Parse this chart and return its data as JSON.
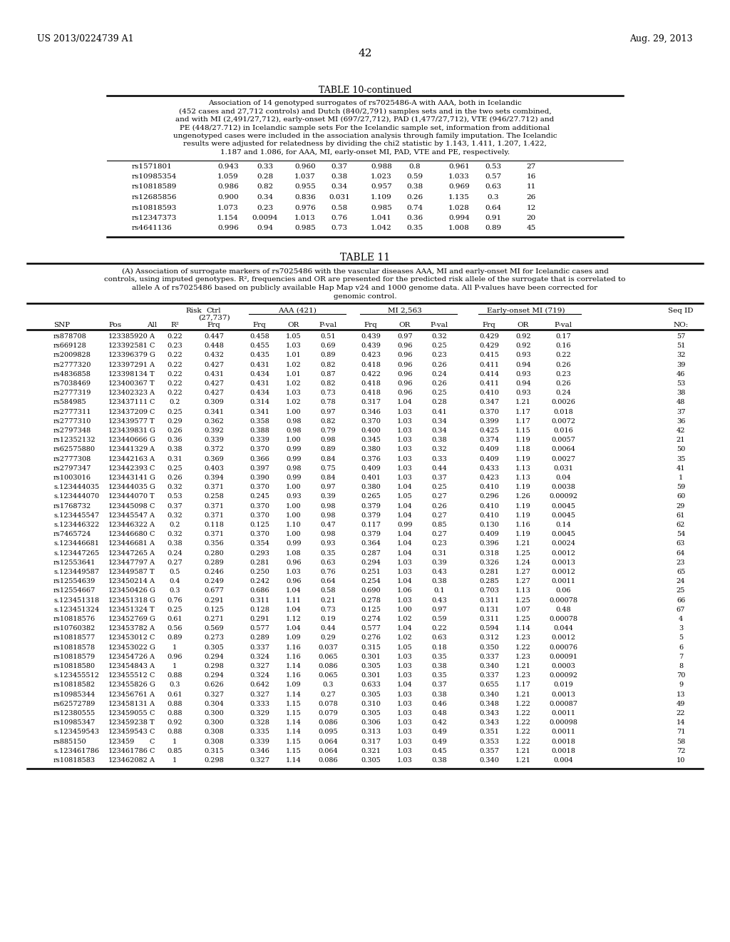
{
  "patent_left": "US 2013/0224739 A1",
  "patent_right": "Aug. 29, 2013",
  "page_number": "42",
  "table10_title": "TABLE 10-continued",
  "table10_caption_lines": [
    "Association of 14 genotyped surrogates of rs7025486-A with AAA, both in Icelandic",
    "(452 cases and 27,712 controls) and Dutch (840/2,791) samples sets and in the two sets combined,",
    "and with MI (2,491/27,712), early-onset MI (697/27,712), PAD (1,477/27,712), VTE (946/27.712) and",
    "PE (448/27.712) in Icelandic sample sets For the Icelandic sample set, information from additional",
    "ungenotyped cases were included in the association analysis through family imputation. The Icelandic",
    "results were adjusted for relatedness by dividing the chi2 statistic by 1.143, 1.411, 1.207, 1.422,",
    "1.187 and 1.086, for AAA, MI, early-onset MI, PAD, VTE and PE, respectively."
  ],
  "table10_rows": [
    [
      "rs1571801",
      "0.943",
      "0.33",
      "0.960",
      "0.37",
      "0.988",
      "0.8",
      "0.961",
      "0.53",
      "27"
    ],
    [
      "rs10985354",
      "1.059",
      "0.28",
      "1.037",
      "0.38",
      "1.023",
      "0.59",
      "1.033",
      "0.57",
      "16"
    ],
    [
      "rs10818589",
      "0.986",
      "0.82",
      "0.955",
      "0.34",
      "0.957",
      "0.38",
      "0.969",
      "0.63",
      "11"
    ],
    [
      "rs12685856",
      "0.900",
      "0.34",
      "0.836",
      "0.031",
      "1.109",
      "0.26",
      "1.135",
      "0.3",
      "26"
    ],
    [
      "rs10818593",
      "1.073",
      "0.23",
      "0.976",
      "0.58",
      "0.985",
      "0.74",
      "1.028",
      "0.64",
      "12"
    ],
    [
      "rs12347373",
      "1.154",
      "0.0094",
      "1.013",
      "0.76",
      "1.041",
      "0.36",
      "0.994",
      "0.91",
      "20"
    ],
    [
      "rs4641136",
      "0.996",
      "0.94",
      "0.985",
      "0.73",
      "1.042",
      "0.35",
      "1.008",
      "0.89",
      "45"
    ]
  ],
  "table11_title": "TABLE 11",
  "table11_caption_lines": [
    "(A) Association of surrogate markers of rs7025486 with the vascular diseases AAA, MI and early-onset MI for Icelandic cases and",
    "controls, using imputed genotypes. R², frequencies and OR are presented for the predicted risk allele of the surrogate that is correlated to",
    "allele A of rs7025486 based on publicly available Hap Map v24 and 1000 genome data. All P-values have been corrected for",
    "genomic control."
  ],
  "table11_rows": [
    [
      "rs878708",
      "123385920",
      "A",
      "0.22",
      "0.447",
      "0.458",
      "1.05",
      "0.51",
      "0.439",
      "0.97",
      "0.32",
      "0.429",
      "0.92",
      "0.17",
      "57"
    ],
    [
      "rs669128",
      "123392581",
      "C",
      "0.23",
      "0.448",
      "0.455",
      "1.03",
      "0.69",
      "0.439",
      "0.96",
      "0.25",
      "0.429",
      "0.92",
      "0.16",
      "51"
    ],
    [
      "rs2009828",
      "123396379",
      "G",
      "0.22",
      "0.432",
      "0.435",
      "1.01",
      "0.89",
      "0.423",
      "0.96",
      "0.23",
      "0.415",
      "0.93",
      "0.22",
      "32"
    ],
    [
      "rs2777320",
      "123397291",
      "A",
      "0.22",
      "0.427",
      "0.431",
      "1.02",
      "0.82",
      "0.418",
      "0.96",
      "0.26",
      "0.411",
      "0.94",
      "0.26",
      "39"
    ],
    [
      "rs4836858",
      "123398134",
      "T",
      "0.22",
      "0.431",
      "0.434",
      "1.01",
      "0.87",
      "0.422",
      "0.96",
      "0.24",
      "0.414",
      "0.93",
      "0.23",
      "46"
    ],
    [
      "rs7038469",
      "123400367",
      "T",
      "0.22",
      "0.427",
      "0.431",
      "1.02",
      "0.82",
      "0.418",
      "0.96",
      "0.26",
      "0.411",
      "0.94",
      "0.26",
      "53"
    ],
    [
      "rs2777319",
      "123402323",
      "A",
      "0.22",
      "0.427",
      "0.434",
      "1.03",
      "0.73",
      "0.418",
      "0.96",
      "0.25",
      "0.410",
      "0.93",
      "0.24",
      "38"
    ],
    [
      "rs584985",
      "123437111",
      "C",
      "0.2",
      "0.309",
      "0.314",
      "1.02",
      "0.78",
      "0.317",
      "1.04",
      "0.28",
      "0.347",
      "1.21",
      "0.0026",
      "48"
    ],
    [
      "rs2777311",
      "123437209",
      "C",
      "0.25",
      "0.341",
      "0.341",
      "1.00",
      "0.97",
      "0.346",
      "1.03",
      "0.41",
      "0.370",
      "1.17",
      "0.018",
      "37"
    ],
    [
      "rs2777310",
      "123439577",
      "T",
      "0.29",
      "0.362",
      "0.358",
      "0.98",
      "0.82",
      "0.370",
      "1.03",
      "0.34",
      "0.399",
      "1.17",
      "0.0072",
      "36"
    ],
    [
      "rs2797348",
      "123439831",
      "G",
      "0.26",
      "0.392",
      "0.388",
      "0.98",
      "0.79",
      "0.400",
      "1.03",
      "0.34",
      "0.425",
      "1.15",
      "0.016",
      "42"
    ],
    [
      "rs12352132",
      "123440666",
      "G",
      "0.36",
      "0.339",
      "0.339",
      "1.00",
      "0.98",
      "0.345",
      "1.03",
      "0.38",
      "0.374",
      "1.19",
      "0.0057",
      "21"
    ],
    [
      "rs62575880",
      "123441329",
      "A",
      "0.38",
      "0.372",
      "0.370",
      "0.99",
      "0.89",
      "0.380",
      "1.03",
      "0.32",
      "0.409",
      "1.18",
      "0.0064",
      "50"
    ],
    [
      "rs2777308",
      "123442163",
      "A",
      "0.31",
      "0.369",
      "0.366",
      "0.99",
      "0.84",
      "0.376",
      "1.03",
      "0.33",
      "0.409",
      "1.19",
      "0.0027",
      "35"
    ],
    [
      "rs2797347",
      "123442393",
      "C",
      "0.25",
      "0.403",
      "0.397",
      "0.98",
      "0.75",
      "0.409",
      "1.03",
      "0.44",
      "0.433",
      "1.13",
      "0.031",
      "41"
    ],
    [
      "rs1003016",
      "123443141",
      "G",
      "0.26",
      "0.394",
      "0.390",
      "0.99",
      "0.84",
      "0.401",
      "1.03",
      "0.37",
      "0.423",
      "1.13",
      "0.04",
      "1"
    ],
    [
      "s.123444035",
      "123444035",
      "G",
      "0.32",
      "0.371",
      "0.370",
      "1.00",
      "0.97",
      "0.380",
      "1.04",
      "0.25",
      "0.410",
      "1.19",
      "0.0038",
      "59"
    ],
    [
      "s.123444070",
      "123444070",
      "T",
      "0.53",
      "0.258",
      "0.245",
      "0.93",
      "0.39",
      "0.265",
      "1.05",
      "0.27",
      "0.296",
      "1.26",
      "0.00092",
      "60"
    ],
    [
      "rs1768732",
      "123445098",
      "C",
      "0.37",
      "0.371",
      "0.370",
      "1.00",
      "0.98",
      "0.379",
      "1.04",
      "0.26",
      "0.410",
      "1.19",
      "0.0045",
      "29"
    ],
    [
      "s.123445547",
      "123445547",
      "A",
      "0.32",
      "0.371",
      "0.370",
      "1.00",
      "0.98",
      "0.379",
      "1.04",
      "0.27",
      "0.410",
      "1.19",
      "0.0045",
      "61"
    ],
    [
      "s.123446322",
      "123446322",
      "A",
      "0.2",
      "0.118",
      "0.125",
      "1.10",
      "0.47",
      "0.117",
      "0.99",
      "0.85",
      "0.130",
      "1.16",
      "0.14",
      "62"
    ],
    [
      "rs7465724",
      "123446680",
      "C",
      "0.32",
      "0.371",
      "0.370",
      "1.00",
      "0.98",
      "0.379",
      "1.04",
      "0.27",
      "0.409",
      "1.19",
      "0.0045",
      "54"
    ],
    [
      "s.123446681",
      "123446681",
      "A",
      "0.38",
      "0.356",
      "0.354",
      "0.99",
      "0.93",
      "0.364",
      "1.04",
      "0.23",
      "0.396",
      "1.21",
      "0.0024",
      "63"
    ],
    [
      "s.123447265",
      "123447265",
      "A",
      "0.24",
      "0.280",
      "0.293",
      "1.08",
      "0.35",
      "0.287",
      "1.04",
      "0.31",
      "0.318",
      "1.25",
      "0.0012",
      "64"
    ],
    [
      "rs12553641",
      "123447797",
      "A",
      "0.27",
      "0.289",
      "0.281",
      "0.96",
      "0.63",
      "0.294",
      "1.03",
      "0.39",
      "0.326",
      "1.24",
      "0.0013",
      "23"
    ],
    [
      "s.123449587",
      "123449587",
      "T",
      "0.5",
      "0.246",
      "0.250",
      "1.03",
      "0.76",
      "0.251",
      "1.03",
      "0.43",
      "0.281",
      "1.27",
      "0.0012",
      "65"
    ],
    [
      "rs12554639",
      "123450214",
      "A",
      "0.4",
      "0.249",
      "0.242",
      "0.96",
      "0.64",
      "0.254",
      "1.04",
      "0.38",
      "0.285",
      "1.27",
      "0.0011",
      "24"
    ],
    [
      "rs12554667",
      "123450426",
      "G",
      "0.3",
      "0.677",
      "0.686",
      "1.04",
      "0.58",
      "0.690",
      "1.06",
      "0.1",
      "0.703",
      "1.13",
      "0.06",
      "25"
    ],
    [
      "s.123451318",
      "123451318",
      "G",
      "0.76",
      "0.291",
      "0.311",
      "1.11",
      "0.21",
      "0.278",
      "1.03",
      "0.43",
      "0.311",
      "1.25",
      "0.00078",
      "66"
    ],
    [
      "s.123451324",
      "123451324",
      "T",
      "0.25",
      "0.125",
      "0.128",
      "1.04",
      "0.73",
      "0.125",
      "1.00",
      "0.97",
      "0.131",
      "1.07",
      "0.48",
      "67"
    ],
    [
      "rs10818576",
      "123452769",
      "G",
      "0.61",
      "0.271",
      "0.291",
      "1.12",
      "0.19",
      "0.274",
      "1.02",
      "0.59",
      "0.311",
      "1.25",
      "0.00078",
      "4"
    ],
    [
      "rs10760382",
      "123453782",
      "A",
      "0.56",
      "0.569",
      "0.577",
      "1.04",
      "0.44",
      "0.577",
      "1.04",
      "0.22",
      "0.594",
      "1.14",
      "0.044",
      "3"
    ],
    [
      "rs10818577",
      "123453012",
      "C",
      "0.89",
      "0.273",
      "0.289",
      "1.09",
      "0.29",
      "0.276",
      "1.02",
      "0.63",
      "0.312",
      "1.23",
      "0.0012",
      "5"
    ],
    [
      "rs10818578",
      "123453022",
      "G",
      "1",
      "0.305",
      "0.337",
      "1.16",
      "0.037",
      "0.315",
      "1.05",
      "0.18",
      "0.350",
      "1.22",
      "0.00076",
      "6"
    ],
    [
      "rs10818579",
      "123454726",
      "A",
      "0.96",
      "0.294",
      "0.324",
      "1.16",
      "0.065",
      "0.301",
      "1.03",
      "0.35",
      "0.337",
      "1.23",
      "0.00091",
      "7"
    ],
    [
      "rs10818580",
      "123454843",
      "A",
      "1",
      "0.298",
      "0.327",
      "1.14",
      "0.086",
      "0.305",
      "1.03",
      "0.38",
      "0.340",
      "1.21",
      "0.0003",
      "8"
    ],
    [
      "s.123455512",
      "123455512",
      "C",
      "0.88",
      "0.294",
      "0.324",
      "1.16",
      "0.065",
      "0.301",
      "1.03",
      "0.35",
      "0.337",
      "1.23",
      "0.00092",
      "70"
    ],
    [
      "rs10818582",
      "123455826",
      "G",
      "0.3",
      "0.626",
      "0.642",
      "1.09",
      "0.3",
      "0.633",
      "1.04",
      "0.37",
      "0.655",
      "1.17",
      "0.019",
      "9"
    ],
    [
      "rs10985344",
      "123456761",
      "A",
      "0.61",
      "0.327",
      "0.327",
      "1.14",
      "0.27",
      "0.305",
      "1.03",
      "0.38",
      "0.340",
      "1.21",
      "0.0013",
      "13"
    ],
    [
      "rs62572789",
      "123458131",
      "A",
      "0.88",
      "0.304",
      "0.333",
      "1.15",
      "0.078",
      "0.310",
      "1.03",
      "0.46",
      "0.348",
      "1.22",
      "0.00087",
      "49"
    ],
    [
      "rs12380555",
      "123459055",
      "C",
      "0.88",
      "0.300",
      "0.329",
      "1.15",
      "0.079",
      "0.305",
      "1.03",
      "0.48",
      "0.343",
      "1.22",
      "0.0011",
      "22"
    ],
    [
      "rs10985347",
      "123459238",
      "T",
      "0.92",
      "0.300",
      "0.328",
      "1.14",
      "0.086",
      "0.306",
      "1.03",
      "0.42",
      "0.343",
      "1.22",
      "0.00098",
      "14"
    ],
    [
      "s.123459543",
      "123459543",
      "C",
      "0.88",
      "0.308",
      "0.335",
      "1.14",
      "0.095",
      "0.313",
      "1.03",
      "0.49",
      "0.351",
      "1.22",
      "0.0011",
      "71"
    ],
    [
      "rs885150",
      "123459",
      "C",
      "1",
      "0.308",
      "0.339",
      "1.15",
      "0.064",
      "0.317",
      "1.03",
      "0.49",
      "0.353",
      "1.22",
      "0.0018",
      "58"
    ],
    [
      "s.123461786",
      "123461786",
      "C",
      "0.85",
      "0.315",
      "0.346",
      "1.15",
      "0.064",
      "0.321",
      "1.03",
      "0.45",
      "0.357",
      "1.21",
      "0.0018",
      "72"
    ],
    [
      "rs10818583",
      "123462082",
      "A",
      "1",
      "0.298",
      "0.327",
      "1.14",
      "0.086",
      "0.305",
      "1.03",
      "0.38",
      "0.340",
      "1.21",
      "0.004",
      "10"
    ]
  ]
}
